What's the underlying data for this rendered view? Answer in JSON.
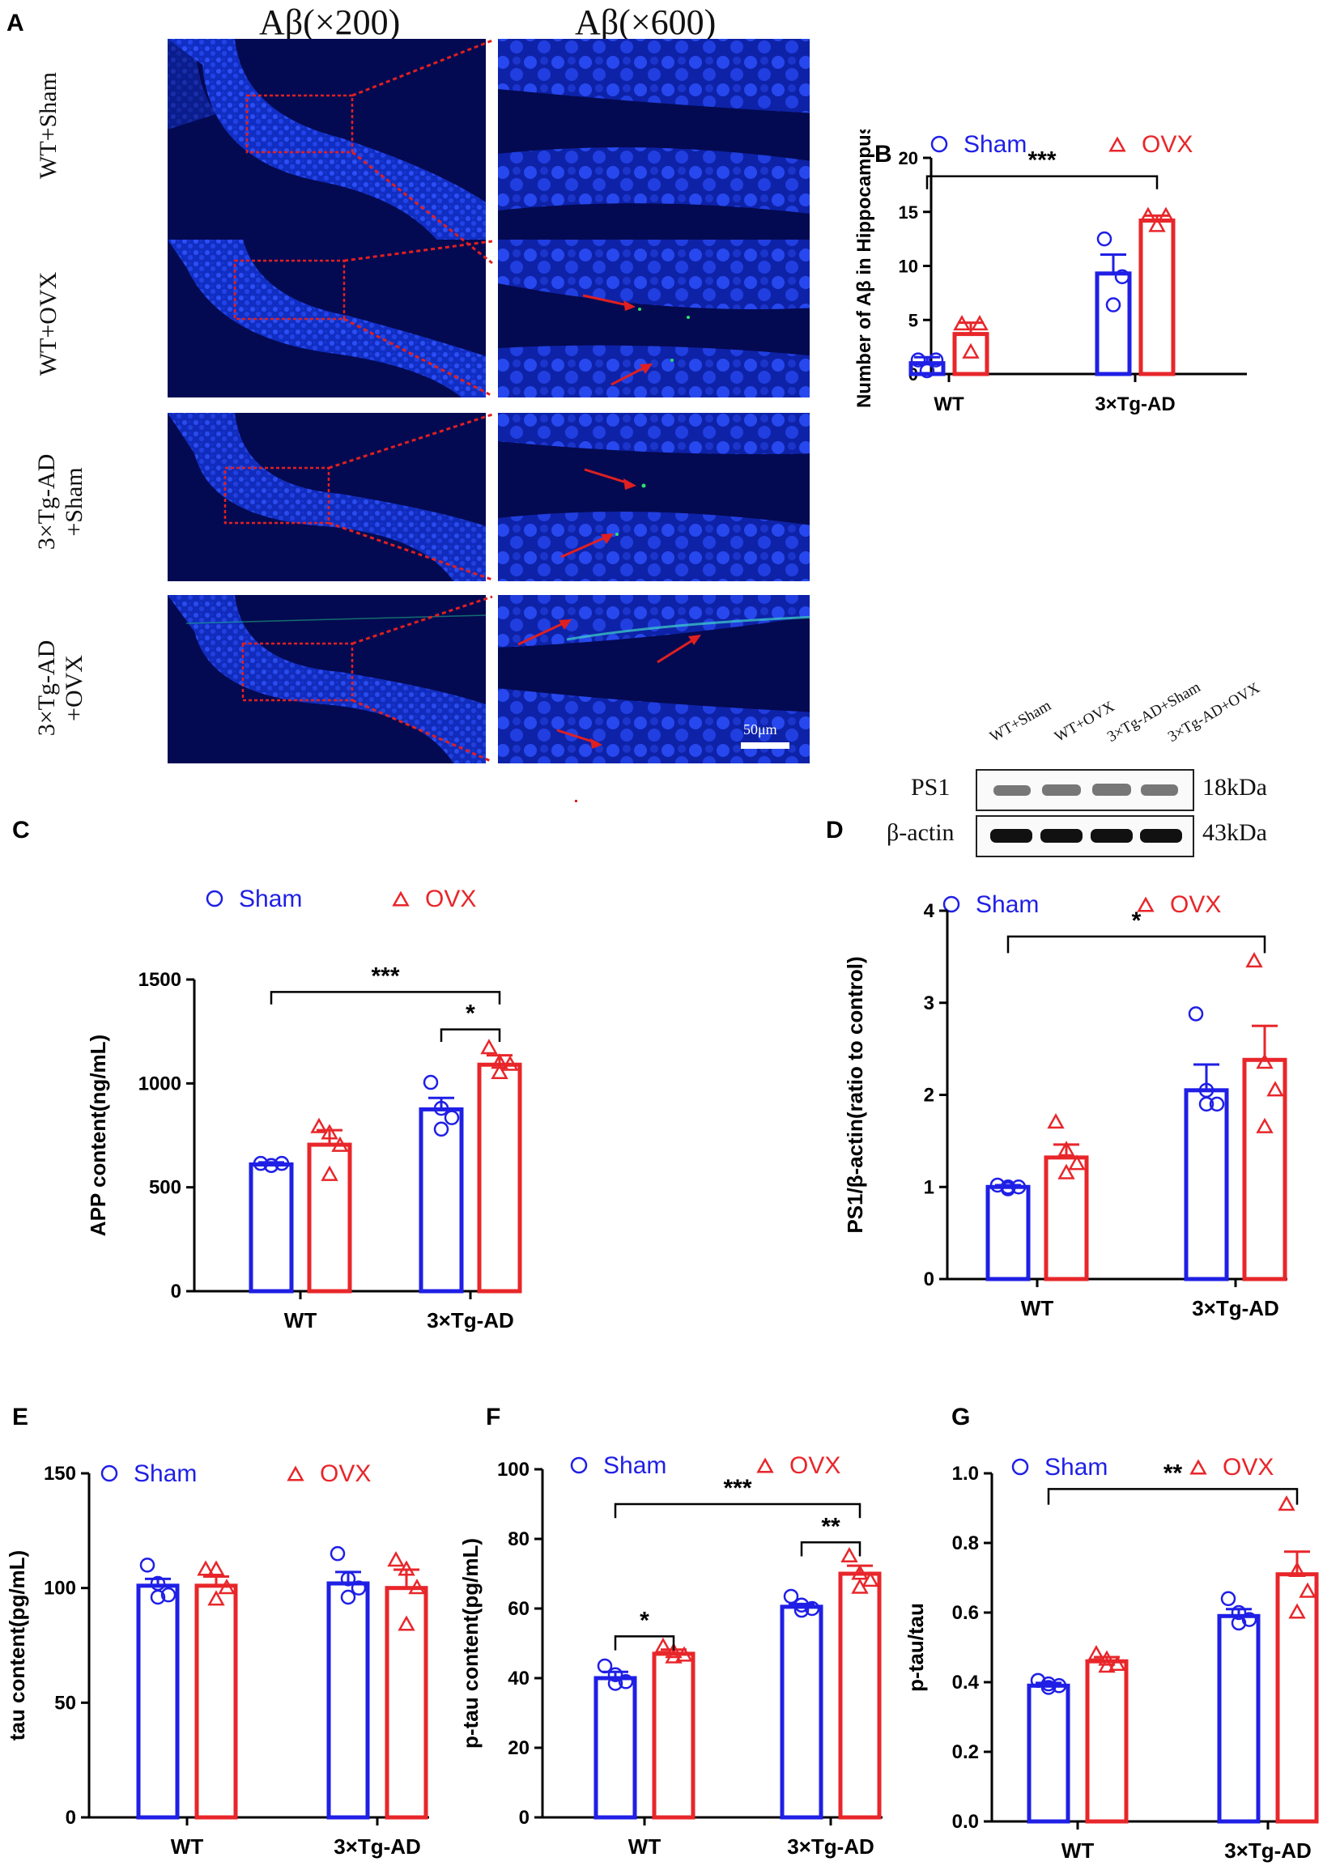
{
  "colors": {
    "sham": "#1f1fe6",
    "ovx": "#e8262a",
    "micro_bg": "#040a52",
    "roi": "#e02020"
  },
  "panel_a": {
    "label": "A",
    "col_titles": [
      "Aβ(×200)",
      "Aβ(×600)"
    ],
    "rows": [
      {
        "line1": "WT+Sham",
        "line2": ""
      },
      {
        "line1": "WT+OVX",
        "line2": ""
      },
      {
        "line1": "3×Tg-AD",
        "line2": "+Sham"
      },
      {
        "line1": "3×Tg-AD",
        "line2": "+OVX"
      }
    ],
    "scale_bar": "50μm"
  },
  "western_blot": {
    "lanes": [
      "WT+Sham",
      "WT+OVX",
      "3×Tg-AD+Sham",
      "3×Tg-AD+OVX"
    ],
    "bands": [
      {
        "protein": "PS1",
        "size": "18kDa"
      },
      {
        "protein": "β-actin",
        "size": "43kDa"
      }
    ]
  },
  "chart_data": [
    {
      "id": "B",
      "panel_label": "B",
      "type": "bar",
      "ylabel": "Number of Aβ in Hippocampus",
      "categories": [
        "WT",
        "3×Tg-AD"
      ],
      "ylim": [
        0,
        20
      ],
      "yticks": [
        0,
        5,
        10,
        15,
        20
      ],
      "legend": [
        "Sham",
        "OVX"
      ],
      "series": [
        {
          "name": "Sham",
          "values": [
            1.0,
            9.3
          ],
          "sem": [
            0.55,
            1.75
          ],
          "points": [
            [
              1.3,
              1.3,
              0.3
            ],
            [
              12.5,
              9.0,
              6.4
            ]
          ]
        },
        {
          "name": "OVX",
          "values": [
            3.7,
            14.2
          ],
          "sem": [
            1.05,
            0.45
          ],
          "points": [
            [
              4.6,
              4.6,
              2.0
            ],
            [
              14.6,
              14.6,
              13.7
            ]
          ]
        }
      ],
      "significance": [
        {
          "label": "***",
          "from": [
            0,
            0
          ],
          "to": [
            1,
            1
          ]
        }
      ]
    },
    {
      "id": "C",
      "panel_label": "C",
      "type": "bar",
      "ylabel": "APP content(ng/mL)",
      "categories": [
        "WT",
        "3×Tg-AD"
      ],
      "ylim": [
        0,
        1500
      ],
      "yticks": [
        0,
        500,
        1000,
        1500
      ],
      "legend": [
        "Sham",
        "OVX"
      ],
      "series": [
        {
          "name": "Sham",
          "values": [
            610,
            875
          ],
          "sem": [
            10,
            55
          ],
          "points": [
            [
              615,
              605,
              615,
              605
            ],
            [
              1005,
              880,
              835,
              780
            ]
          ]
        },
        {
          "name": "OVX",
          "values": [
            705,
            1090
          ],
          "sem": [
            70,
            45
          ],
          "points": [
            [
              790,
              760,
              700,
              560
            ],
            [
              1170,
              1100,
              1090,
              1050
            ]
          ]
        }
      ],
      "significance": [
        {
          "label": "***",
          "from": [
            0,
            0
          ],
          "to": [
            1,
            1
          ]
        },
        {
          "label": "*",
          "from": [
            1,
            0
          ],
          "to": [
            1,
            1
          ]
        }
      ]
    },
    {
      "id": "D",
      "panel_label": "D",
      "type": "bar",
      "ylabel": "PS1/β-actin(ratio to control)",
      "categories": [
        "WT",
        "3×Tg-AD"
      ],
      "ylim": [
        0,
        4
      ],
      "yticks": [
        0,
        1,
        2,
        3,
        4
      ],
      "legend": [
        "Sham",
        "OVX"
      ],
      "series": [
        {
          "name": "Sham",
          "values": [
            1.0,
            2.05
          ],
          "sem": [
            0.02,
            0.28
          ],
          "points": [
            [
              1.02,
              1.0,
              1.0,
              0.98
            ],
            [
              2.88,
              2.05,
              1.9,
              1.9
            ]
          ]
        },
        {
          "name": "OVX",
          "values": [
            1.32,
            2.38
          ],
          "sem": [
            0.14,
            0.37
          ],
          "points": [
            [
              1.7,
              1.4,
              1.25,
              1.15
            ],
            [
              3.45,
              2.35,
              2.05,
              1.65
            ]
          ]
        }
      ],
      "significance": [
        {
          "label": "*",
          "from": [
            0,
            0
          ],
          "to": [
            1,
            1
          ]
        }
      ]
    },
    {
      "id": "E",
      "panel_label": "E",
      "type": "bar",
      "ylabel": "tau content(pg/mL)",
      "categories": [
        "WT",
        "3×Tg-AD"
      ],
      "ylim": [
        0,
        150
      ],
      "yticks": [
        0,
        50,
        100,
        150
      ],
      "legend": [
        "Sham",
        "OVX"
      ],
      "series": [
        {
          "name": "Sham",
          "values": [
            101,
            102
          ],
          "sem": [
            3,
            5
          ],
          "points": [
            [
              110,
              102,
              97,
              96
            ],
            [
              115,
              104,
              100,
              96
            ]
          ]
        },
        {
          "name": "OVX",
          "values": [
            101,
            100
          ],
          "sem": [
            4,
            8
          ],
          "points": [
            [
              108,
              108,
              100,
              95
            ],
            [
              112,
              108,
              100,
              84
            ]
          ]
        }
      ],
      "significance": []
    },
    {
      "id": "F",
      "panel_label": "F",
      "type": "bar",
      "ylabel": "p-tau content(pg/mL)",
      "categories": [
        "WT",
        "3×Tg-AD"
      ],
      "ylim": [
        0,
        100
      ],
      "yticks": [
        0,
        20,
        40,
        60,
        80,
        100
      ],
      "legend": [
        "Sham",
        "OVX"
      ],
      "series": [
        {
          "name": "Sham",
          "values": [
            40,
            60.5
          ],
          "sem": [
            1.8,
            0.8
          ],
          "points": [
            [
              43.5,
              41,
              39,
              38.5
            ],
            [
              63.5,
              61,
              60,
              59.5
            ]
          ]
        },
        {
          "name": "OVX",
          "values": [
            47,
            70
          ],
          "sem": [
            1.2,
            2.3
          ],
          "points": [
            [
              49,
              47.5,
              46.5,
              46
            ],
            [
              75,
              70,
              68,
              66
            ]
          ]
        }
      ],
      "significance": [
        {
          "label": "*",
          "from": [
            0,
            0
          ],
          "to": [
            0,
            1
          ]
        },
        {
          "label": "***",
          "from": [
            0,
            0
          ],
          "to": [
            1,
            1
          ]
        },
        {
          "label": "**",
          "from": [
            1,
            0
          ],
          "to": [
            1,
            1
          ]
        }
      ]
    },
    {
      "id": "G",
      "panel_label": "G",
      "type": "bar",
      "ylabel": "p-tau/tau",
      "categories": [
        "WT",
        "3×Tg-AD"
      ],
      "ylim": [
        0,
        1.0
      ],
      "yticks": [
        0.0,
        0.2,
        0.4,
        0.6,
        0.8,
        1.0
      ],
      "legend": [
        "Sham",
        "OVX"
      ],
      "series": [
        {
          "name": "Sham",
          "values": [
            0.39,
            0.59
          ],
          "sem": [
            0.008,
            0.02
          ],
          "points": [
            [
              0.405,
              0.395,
              0.39,
              0.385
            ],
            [
              0.64,
              0.6,
              0.58,
              0.57
            ]
          ]
        },
        {
          "name": "OVX",
          "values": [
            0.46,
            0.71
          ],
          "sem": [
            0.012,
            0.065
          ],
          "points": [
            [
              0.48,
              0.465,
              0.45,
              0.445
            ],
            [
              0.91,
              0.72,
              0.66,
              0.6
            ]
          ]
        }
      ],
      "significance": [
        {
          "label": "**",
          "from": [
            0,
            0
          ],
          "to": [
            1,
            1
          ]
        }
      ]
    }
  ]
}
